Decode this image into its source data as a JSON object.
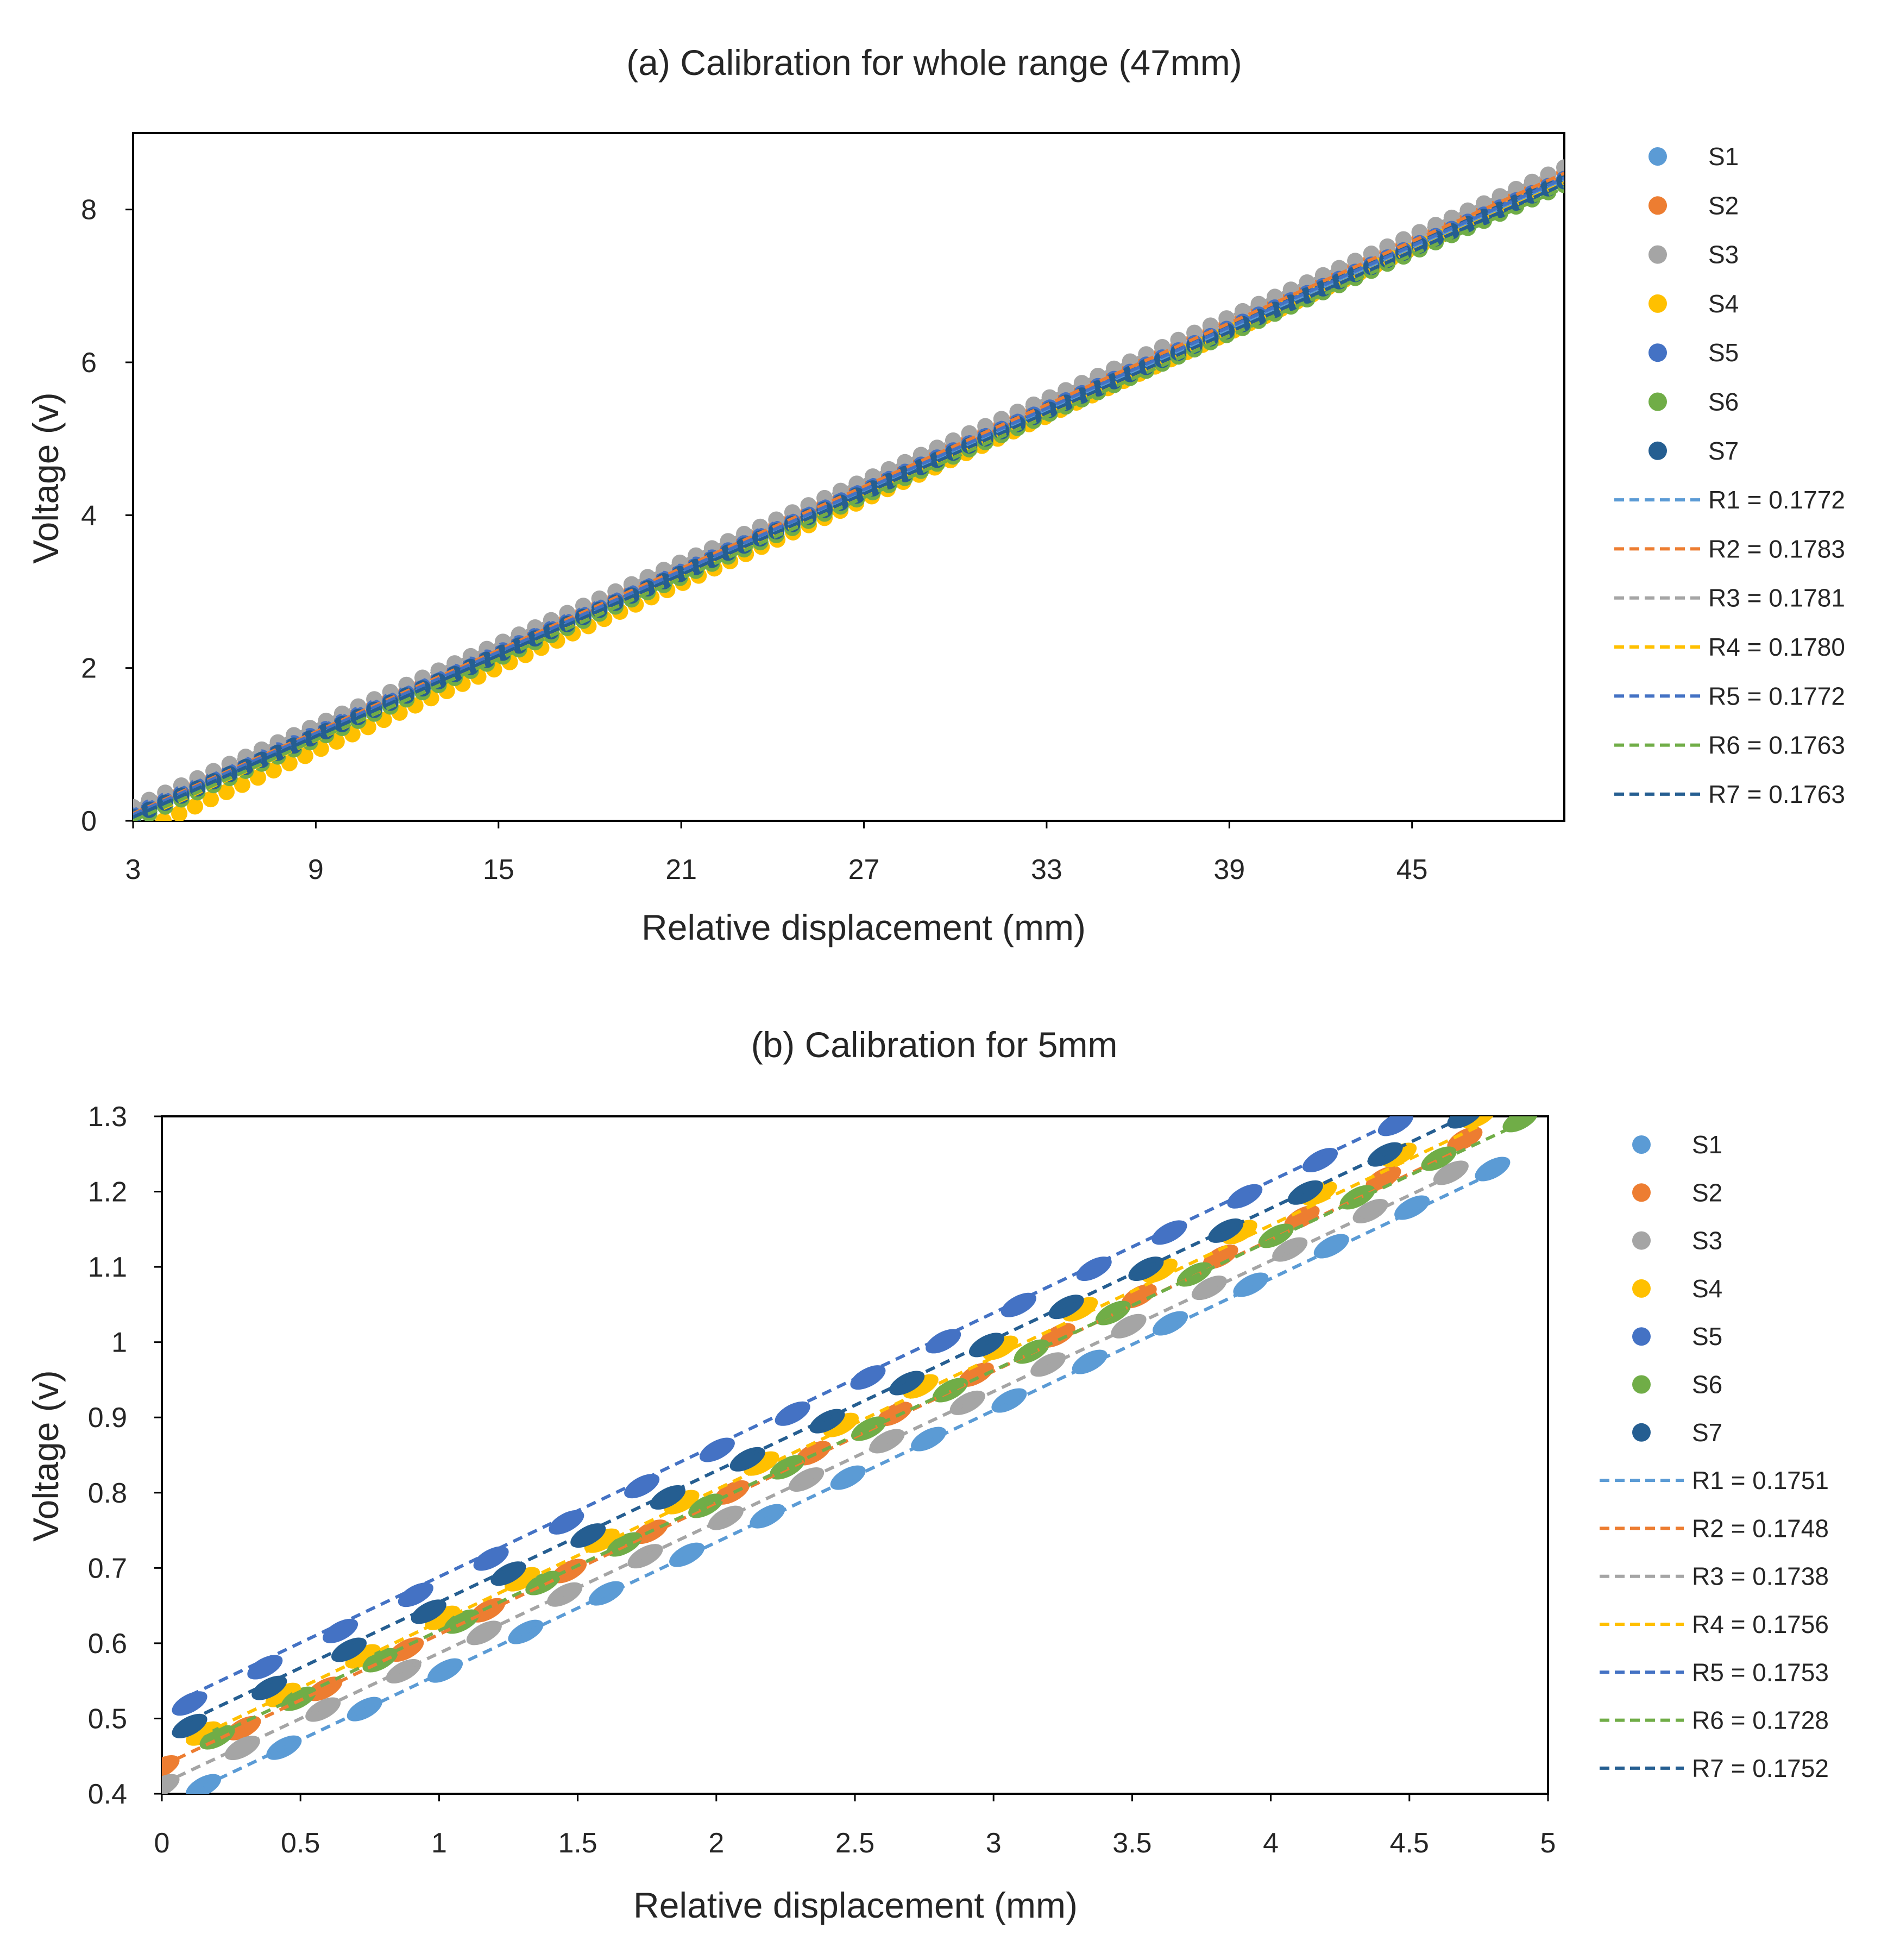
{
  "chart_data": [
    {
      "type": "scatter",
      "title": "(a) Calibration for whole range (47mm)",
      "xlabel": "Relative displacement (mm)",
      "ylabel": "Voltage (v)",
      "xlim": [
        3,
        50
      ],
      "ylim": [
        0,
        9
      ],
      "xticks": [
        3,
        9,
        15,
        21,
        27,
        33,
        39,
        45
      ],
      "yticks": [
        0,
        2,
        4,
        6,
        8
      ],
      "legend_position": "right",
      "grid": false,
      "series": [
        {
          "name": "S1",
          "color": "#5B9BD5",
          "x0": 3.0,
          "x1": 50.0,
          "y0": 0.05,
          "y1": 8.38
        },
        {
          "name": "S2",
          "color": "#ED7D31",
          "x0": 3.0,
          "x1": 50.0,
          "y0": 0.1,
          "y1": 8.48
        },
        {
          "name": "S3",
          "color": "#A5A5A5",
          "x0": 3.0,
          "x1": 50.0,
          "y0": 0.18,
          "y1": 8.55
        },
        {
          "name": "S4",
          "color": "#FFC000",
          "x0": 4.0,
          "x1": 50.0,
          "y0": 0.0,
          "y1": 8.4
        },
        {
          "name": "S5",
          "color": "#4472C4",
          "x0": 3.0,
          "x1": 50.0,
          "y0": 0.08,
          "y1": 8.4
        },
        {
          "name": "S6",
          "color": "#70AD47",
          "x0": 3.0,
          "x1": 50.0,
          "y0": 0.0,
          "y1": 8.32
        },
        {
          "name": "S7",
          "color": "#255E91",
          "x0": 3.0,
          "x1": 50.0,
          "y0": 0.05,
          "y1": 8.37
        }
      ],
      "fits": [
        {
          "name": "R1 = 0.1772",
          "color": "#5B9BD5",
          "slope": 0.1772,
          "intercept": -0.48
        },
        {
          "name": "R2 = 0.1783",
          "color": "#ED7D31",
          "slope": 0.1783,
          "intercept": -0.44
        },
        {
          "name": "R3 = 0.1781",
          "color": "#A5A5A5",
          "slope": 0.1781,
          "intercept": -0.35
        },
        {
          "name": "R4 = 0.1780",
          "color": "#FFC000",
          "slope": 0.178,
          "intercept": -0.55
        },
        {
          "name": "R5 = 0.1772",
          "color": "#4472C4",
          "slope": 0.1772,
          "intercept": -0.45
        },
        {
          "name": "R6 = 0.1763",
          "color": "#70AD47",
          "slope": 0.1763,
          "intercept": -0.53
        },
        {
          "name": "R7 = 0.1763",
          "color": "#255E91",
          "slope": 0.1763,
          "intercept": -0.48
        }
      ]
    },
    {
      "type": "scatter",
      "title": "(b) Calibration for 5mm",
      "xlabel": "Relative displacement (mm)",
      "ylabel": "Voltage (v)",
      "xlim": [
        0,
        5
      ],
      "ylim": [
        0.4,
        1.3
      ],
      "xticks": [
        0,
        0.5,
        1,
        1.5,
        2,
        2.5,
        3,
        3.5,
        4,
        4.5,
        5
      ],
      "yticks": [
        0.4,
        0.5,
        0.6,
        0.7,
        0.8,
        0.9,
        1,
        1.1,
        1.2,
        1.3
      ],
      "legend_position": "right",
      "grid": false,
      "series": [
        {
          "name": "S1",
          "color": "#5B9BD5",
          "x0": 0.15,
          "x1": 4.8,
          "y0": 0.41,
          "y1": 1.23
        },
        {
          "name": "S2",
          "color": "#ED7D31",
          "x0": 0.0,
          "x1": 4.7,
          "y0": 0.435,
          "y1": 1.27
        },
        {
          "name": "S3",
          "color": "#A5A5A5",
          "x0": 0.0,
          "x1": 4.65,
          "y0": 0.41,
          "y1": 1.225
        },
        {
          "name": "S4",
          "color": "#FFC000",
          "x0": 0.15,
          "x1": 4.75,
          "y0": 0.48,
          "y1": 1.3
        },
        {
          "name": "S5",
          "color": "#4472C4",
          "x0": 0.1,
          "x1": 4.45,
          "y0": 0.52,
          "y1": 1.29
        },
        {
          "name": "S6",
          "color": "#70AD47",
          "x0": 0.2,
          "x1": 4.9,
          "y0": 0.475,
          "y1": 1.295
        },
        {
          "name": "S7",
          "color": "#255E91",
          "x0": 0.1,
          "x1": 4.7,
          "y0": 0.49,
          "y1": 1.3
        }
      ],
      "fits": [
        {
          "name": "R1 = 0.1751",
          "color": "#5B9BD5",
          "slope": 0.1751,
          "intercept": 0.384
        },
        {
          "name": "R2 = 0.1748",
          "color": "#ED7D31",
          "slope": 0.1748,
          "intercept": 0.437
        },
        {
          "name": "R3 = 0.1738",
          "color": "#A5A5A5",
          "slope": 0.1738,
          "intercept": 0.413
        },
        {
          "name": "R4 = 0.1756",
          "color": "#FFC000",
          "slope": 0.1756,
          "intercept": 0.453
        },
        {
          "name": "R5 = 0.1753",
          "color": "#4472C4",
          "slope": 0.1753,
          "intercept": 0.513
        },
        {
          "name": "R6 = 0.1728",
          "color": "#70AD47",
          "slope": 0.1728,
          "intercept": 0.444
        },
        {
          "name": "R7 = 0.1752",
          "color": "#255E91",
          "slope": 0.1752,
          "intercept": 0.48
        }
      ]
    }
  ]
}
